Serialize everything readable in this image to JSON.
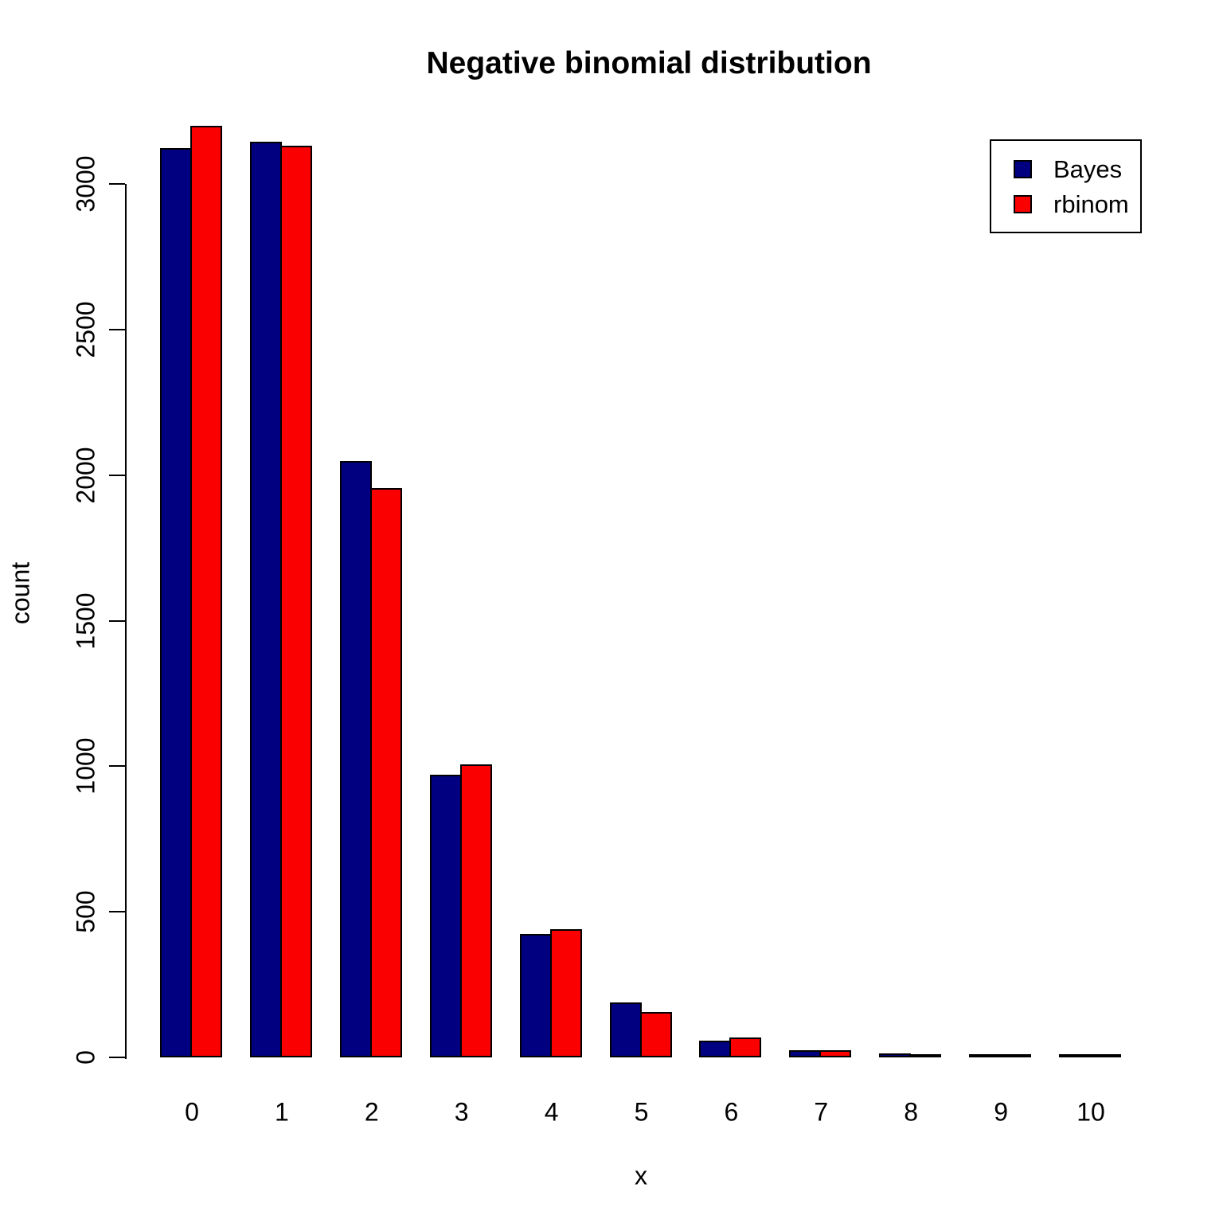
{
  "chart_data": {
    "type": "bar",
    "title": "Negative binomial distribution",
    "xlabel": "x",
    "ylabel": "count",
    "categories": [
      "0",
      "1",
      "2",
      "3",
      "4",
      "5",
      "6",
      "7",
      "8",
      "9",
      "10"
    ],
    "series": [
      {
        "name": "Bayes",
        "color": "#000080",
        "values": [
          3123,
          3144,
          2048,
          971,
          425,
          188,
          58,
          24,
          13,
          4,
          3
        ]
      },
      {
        "name": "rbinom",
        "color": "#FA0000",
        "values": [
          3201,
          3132,
          1956,
          1006,
          440,
          157,
          69,
          25,
          10,
          6,
          2
        ]
      }
    ],
    "ylim": [
      0,
      3000
    ],
    "yticks": [
      0,
      500,
      1000,
      1500,
      2000,
      2500,
      3000
    ],
    "grid": false,
    "legend_position": "top-right",
    "bar_border_color": "#000000",
    "background_color": "#ffffff"
  }
}
